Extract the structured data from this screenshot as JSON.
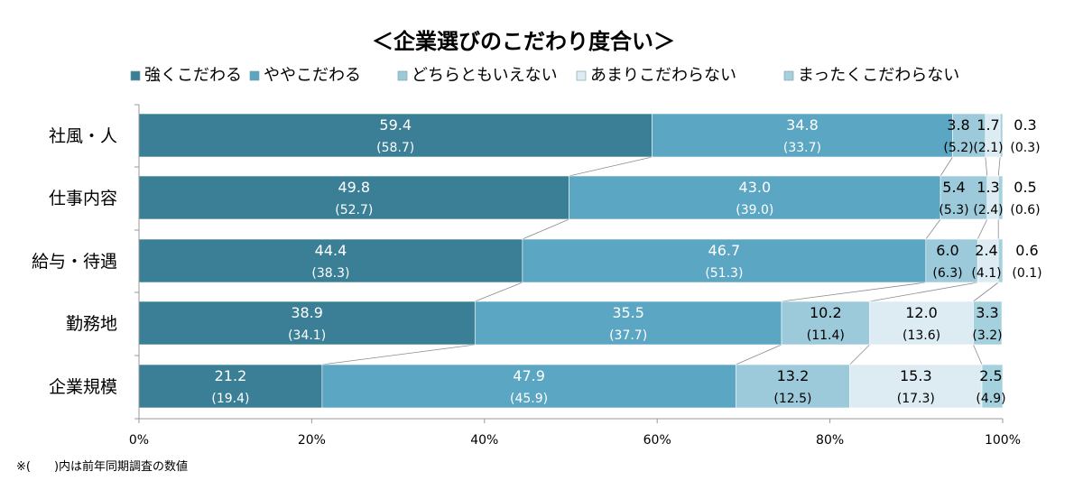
{
  "chart_data": {
    "type": "bar",
    "orientation": "horizontal",
    "stacked": true,
    "percent": true,
    "title": "＜企業選びのこだわり度合い＞",
    "categories": [
      "社風・人",
      "仕事内容",
      "給与・待遇",
      "勤務地",
      "企業規模"
    ],
    "series": [
      {
        "name": "強くこだわる",
        "color": "#3a7f96",
        "values": [
          59.4,
          49.8,
          44.4,
          38.9,
          21.2
        ],
        "prev_values": [
          "(58.7)",
          "(52.7)",
          "(38.3)",
          "(34.1)",
          "(19.4)"
        ]
      },
      {
        "name": "ややこだわる",
        "color": "#5ba6c2",
        "values": [
          34.8,
          43.0,
          46.7,
          35.5,
          47.9
        ],
        "prev_values": [
          "(33.7)",
          "(39.0)",
          "(51.3)",
          "(37.7)",
          "(45.9)"
        ]
      },
      {
        "name": "どちらともいえない",
        "color": "#9ccada",
        "values": [
          3.8,
          5.4,
          6.0,
          10.2,
          13.2
        ],
        "prev_values": [
          "(5.2)",
          "(5.3)",
          "(6.3)",
          "(11.4)",
          "(12.5)"
        ]
      },
      {
        "name": "あまりこだわらない",
        "color": "#dcecf2",
        "values": [
          1.7,
          1.3,
          2.4,
          12.0,
          15.3
        ],
        "prev_values": [
          "(2.1)",
          "(2.4)",
          "(4.1)",
          "(13.6)",
          "(17.3)"
        ]
      },
      {
        "name": "まったくこだわらない",
        "color": "#a5d1de",
        "values": [
          0.3,
          0.5,
          0.6,
          3.3,
          2.5
        ],
        "prev_values": [
          "(0.3)",
          "(0.6)",
          "(0.1)",
          "(3.2)",
          "(4.9)"
        ]
      }
    ],
    "xlim": [
      0,
      100
    ],
    "x_ticks": [
      "0%",
      "20%",
      "40%",
      "60%",
      "80%",
      "100%"
    ],
    "legend_position": "top",
    "grid": false,
    "footnote": "※(　　)内は前年同期調査の数値"
  }
}
